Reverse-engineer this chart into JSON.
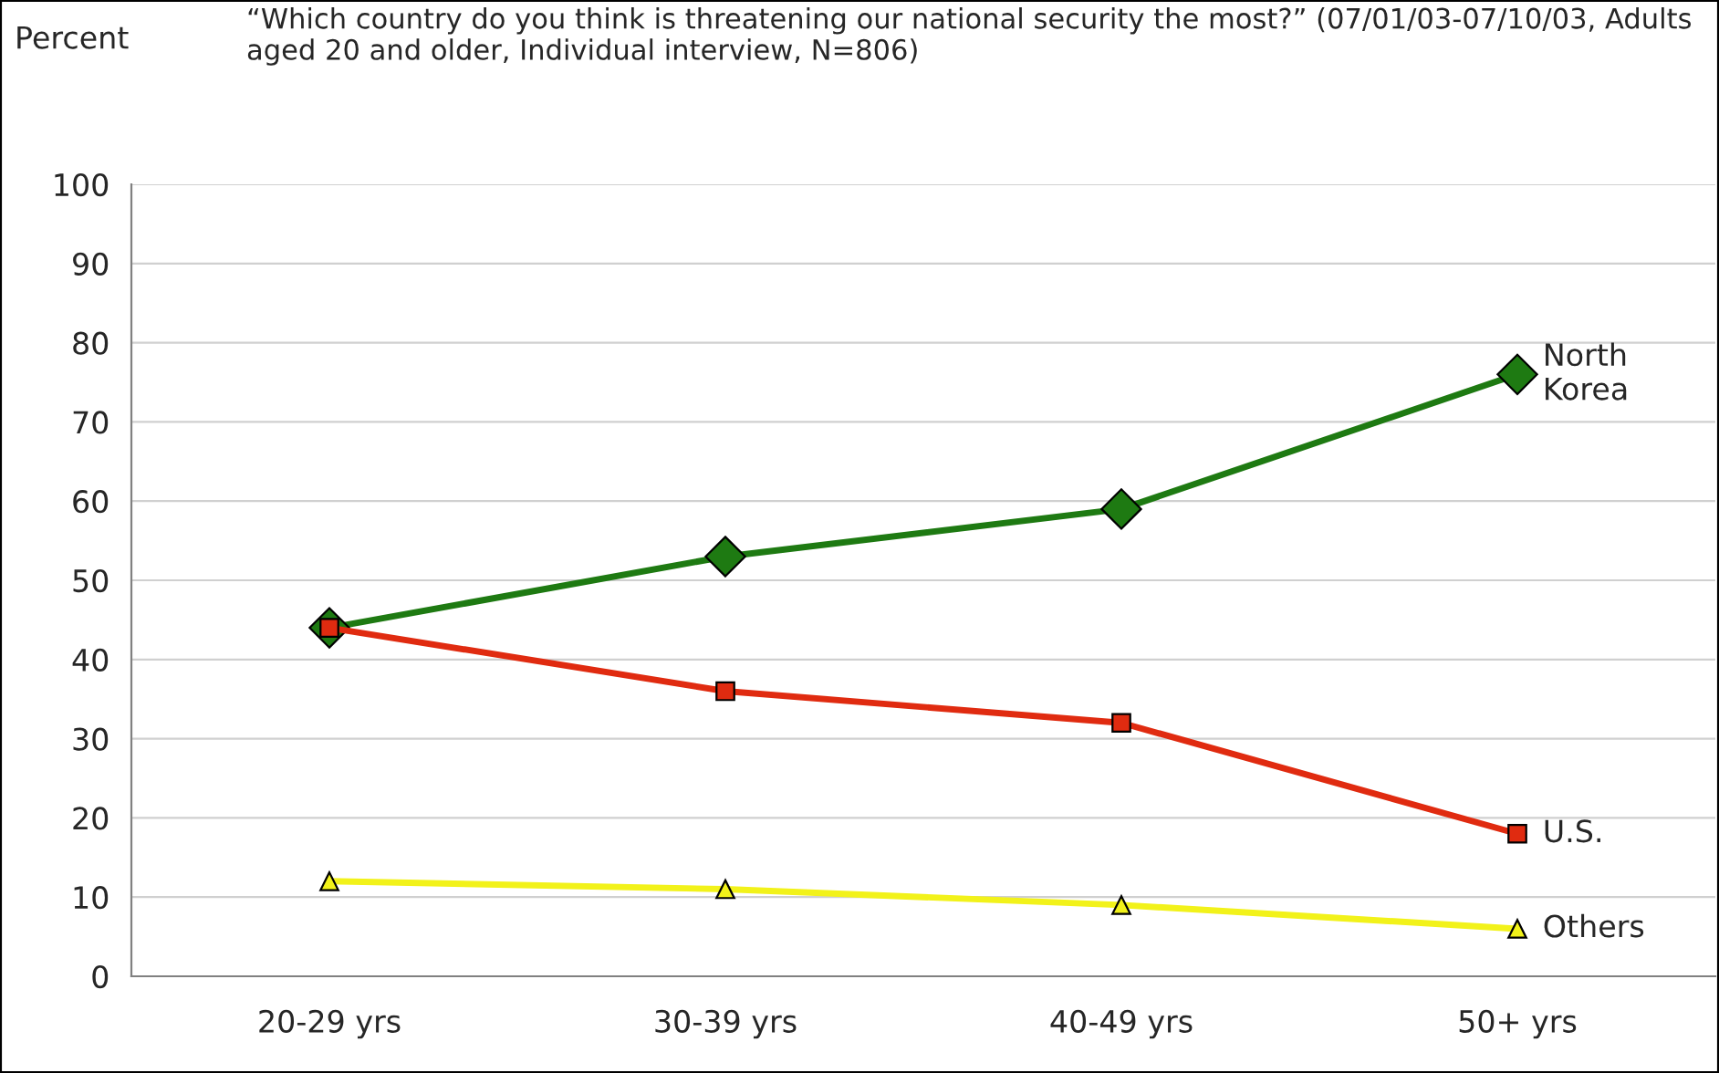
{
  "chart_data": {
    "type": "line",
    "title": "“Which country do you think is threatening our national security the most?” (07/01/03-07/10/03, Adults aged 20 and older, Individual interview, N=806)",
    "ylabel": "Percent",
    "categories": [
      "20-29 yrs",
      "30-39 yrs",
      "40-49 yrs",
      "50+ yrs"
    ],
    "series": [
      {
        "name": "North Korea",
        "color": "#1e7a12",
        "marker": "diamond",
        "values": [
          44,
          53,
          59,
          76
        ]
      },
      {
        "name": "U.S.",
        "color": "#e02b10",
        "marker": "square",
        "values": [
          44,
          36,
          32,
          18
        ]
      },
      {
        "name": "Others",
        "color": "#f2f21a",
        "marker": "triangle",
        "values": [
          12,
          11,
          9,
          6
        ]
      }
    ],
    "ylim": [
      0,
      100
    ],
    "yticks": [
      0,
      10,
      20,
      30,
      40,
      50,
      60,
      70,
      80,
      90,
      100
    ],
    "grid": "y",
    "legend": false
  }
}
